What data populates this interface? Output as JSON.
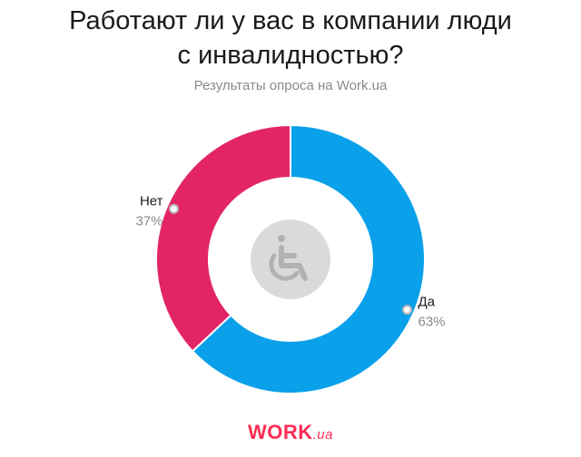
{
  "title_lines": [
    "Работают ли у вас в компании люди",
    "с инвалидностью?"
  ],
  "subtitle": "Результаты опроса на Work.ua",
  "icon": "wheelchair-icon",
  "logo": {
    "main": "WORK",
    "suffix": ".ua",
    "color": "#ff2d55"
  },
  "chart_data": {
    "type": "pie",
    "variant": "donut",
    "slices": [
      {
        "label": "Да",
        "value": 63,
        "display": "63%",
        "color": "#0aa0ea"
      },
      {
        "label": "Нет",
        "value": 37,
        "display": "37%",
        "color": "#e32567"
      }
    ]
  }
}
